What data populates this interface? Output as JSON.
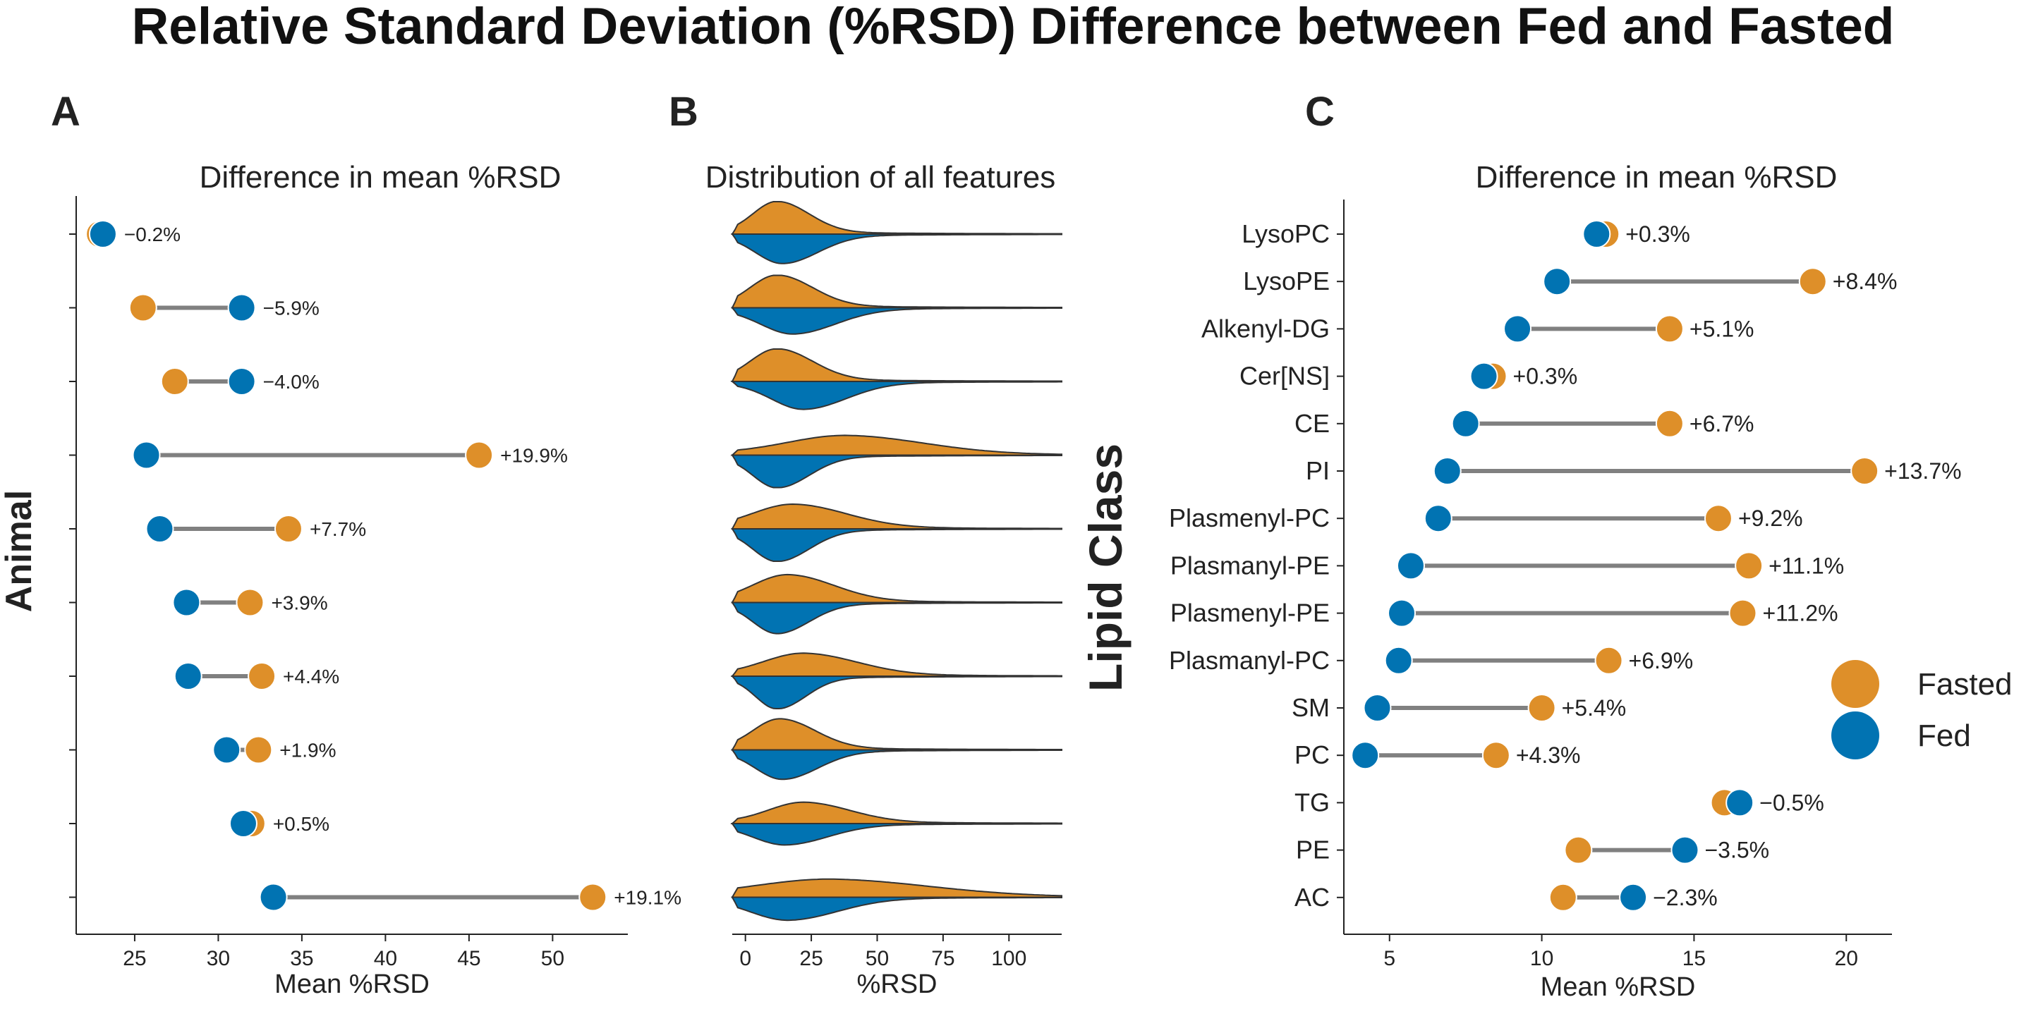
{
  "figure": {
    "title": "Relative Standard Deviation (%RSD) Difference between Fed and Fasted",
    "colors": {
      "fasted": "#DE8F29",
      "fed": "#0173B2",
      "line": "#808080",
      "violin_edge": "#333333",
      "axis": "#222222"
    }
  },
  "chart_data": [
    {
      "panel": "A",
      "type": "scatter",
      "subtype": "dumbbell",
      "title": "Difference in mean %RSD",
      "xlabel": "Mean %RSD",
      "ylabel": "Animal",
      "xlim": [
        21.5,
        54.5
      ],
      "xticks": [
        25,
        30,
        35,
        40,
        45,
        50
      ],
      "rows": [
        {
          "fasted": 22.9,
          "fed": 23.1,
          "label": "−0.2%"
        },
        {
          "fasted": 25.5,
          "fed": 31.4,
          "label": "−5.9%"
        },
        {
          "fasted": 27.4,
          "fed": 31.4,
          "label": "−4.0%"
        },
        {
          "fasted": 45.6,
          "fed": 25.7,
          "label": "+19.9%"
        },
        {
          "fasted": 34.2,
          "fed": 26.5,
          "label": "+7.7%"
        },
        {
          "fasted": 31.9,
          "fed": 28.1,
          "label": "+3.9%"
        },
        {
          "fasted": 32.6,
          "fed": 28.2,
          "label": "+4.4%"
        },
        {
          "fasted": 32.4,
          "fed": 30.5,
          "label": "+1.9%"
        },
        {
          "fasted": 32.0,
          "fed": 31.5,
          "label": "+0.5%"
        },
        {
          "fasted": 52.4,
          "fed": 33.3,
          "label": "+19.1%"
        }
      ]
    },
    {
      "panel": "B",
      "type": "area",
      "subtype": "split-violin",
      "title": "Distribution of all features",
      "xlabel": "%RSD",
      "xlim": [
        -5,
        120
      ],
      "xticks": [
        0,
        25,
        50,
        75,
        100
      ],
      "series": [
        {
          "fasted": {
            "peak": 12,
            "sigma": 9,
            "height": 0.95
          },
          "fed": {
            "peak": 14,
            "sigma": 10,
            "height": 0.85
          }
        },
        {
          "fasted": {
            "peak": 12,
            "sigma": 10,
            "height": 0.95
          },
          "fed": {
            "peak": 18,
            "sigma": 12,
            "height": 0.75
          }
        },
        {
          "fasted": {
            "peak": 12,
            "sigma": 10,
            "height": 0.95
          },
          "fed": {
            "peak": 22,
            "sigma": 12,
            "height": 0.8
          }
        },
        {
          "fasted": {
            "peak": 38,
            "sigma": 22,
            "height": 0.55
          },
          "fed": {
            "peak": 12,
            "sigma": 9,
            "height": 0.95
          }
        },
        {
          "fasted": {
            "peak": 18,
            "sigma": 15,
            "height": 0.7
          },
          "fed": {
            "peak": 12,
            "sigma": 9,
            "height": 0.95
          }
        },
        {
          "fasted": {
            "peak": 16,
            "sigma": 13,
            "height": 0.8
          },
          "fed": {
            "peak": 12,
            "sigma": 9,
            "height": 0.9
          }
        },
        {
          "fasted": {
            "peak": 22,
            "sigma": 15,
            "height": 0.65
          },
          "fed": {
            "peak": 12,
            "sigma": 8,
            "height": 0.95
          }
        },
        {
          "fasted": {
            "peak": 13,
            "sigma": 10,
            "height": 0.9
          },
          "fed": {
            "peak": 14,
            "sigma": 10,
            "height": 0.85
          }
        },
        {
          "fasted": {
            "peak": 22,
            "sigma": 13,
            "height": 0.6
          },
          "fed": {
            "peak": 15,
            "sigma": 12,
            "height": 0.6
          }
        },
        {
          "fasted": {
            "peak": 32,
            "sigma": 28,
            "height": 0.5
          },
          "fed": {
            "peak": 16,
            "sigma": 14,
            "height": 0.65
          }
        }
      ]
    },
    {
      "panel": "C",
      "type": "scatter",
      "subtype": "dumbbell",
      "title": "Difference in mean %RSD",
      "xlabel": "Mean %RSD",
      "ylabel": "Lipid Class",
      "xlim": [
        3.5,
        21.5
      ],
      "xticks": [
        5,
        10,
        15,
        20
      ],
      "categories": [
        "LysoPC",
        "LysoPE",
        "Alkenyl-DG",
        "Cer[NS]",
        "CE",
        "PI",
        "Plasmenyl-PC",
        "Plasmanyl-PE",
        "Plasmenyl-PE",
        "Plasmanyl-PC",
        "SM",
        "PC",
        "TG",
        "PE",
        "AC"
      ],
      "rows": [
        {
          "fasted": 12.1,
          "fed": 11.8,
          "label": "+0.3%"
        },
        {
          "fasted": 18.9,
          "fed": 10.5,
          "label": "+8.4%"
        },
        {
          "fasted": 14.2,
          "fed": 9.2,
          "label": "+5.1%"
        },
        {
          "fasted": 8.4,
          "fed": 8.1,
          "label": "+0.3%"
        },
        {
          "fasted": 14.2,
          "fed": 7.5,
          "label": "+6.7%"
        },
        {
          "fasted": 20.6,
          "fed": 6.9,
          "label": "+13.7%"
        },
        {
          "fasted": 15.8,
          "fed": 6.6,
          "label": "+9.2%"
        },
        {
          "fasted": 16.8,
          "fed": 5.7,
          "label": "+11.1%"
        },
        {
          "fasted": 16.6,
          "fed": 5.4,
          "label": "+11.2%"
        },
        {
          "fasted": 12.2,
          "fed": 5.3,
          "label": "+6.9%"
        },
        {
          "fasted": 10.0,
          "fed": 4.6,
          "label": "+5.4%"
        },
        {
          "fasted": 8.5,
          "fed": 4.2,
          "label": "+4.3%"
        },
        {
          "fasted": 16.0,
          "fed": 16.5,
          "label": "−0.5%"
        },
        {
          "fasted": 11.2,
          "fed": 14.7,
          "label": "−3.5%"
        },
        {
          "fasted": 10.7,
          "fed": 13.0,
          "label": "−2.3%"
        }
      ],
      "legend": {
        "position": "right",
        "entries": [
          "Fasted",
          "Fed"
        ]
      }
    }
  ]
}
